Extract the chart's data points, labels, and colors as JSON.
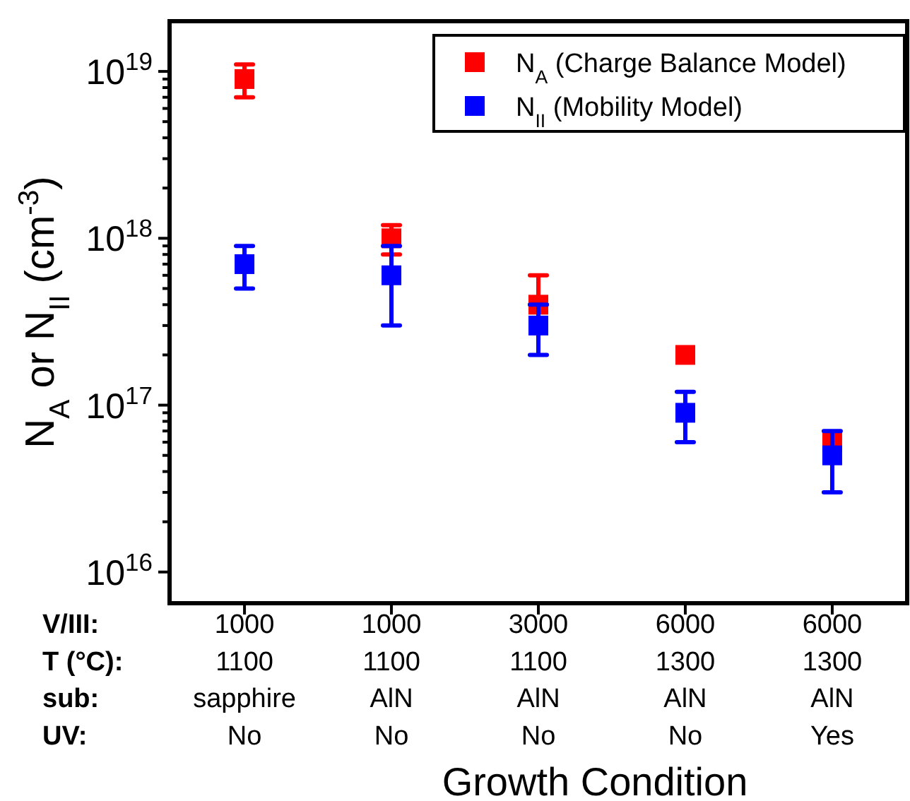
{
  "chart_data": {
    "type": "scatter",
    "xlabel": "Growth Condition",
    "ylabel": "N$_{A}$ or N$_{II}$ (cm$^{-3}$)",
    "categories": [
      "1000\n1100\nsapphire\nNo",
      "1000\n1100\nAlN\nNo",
      "3000\n1100\nAlN\nNo",
      "6000\n1300\nAlN\nNo",
      "6000\n1300\nAlN\nYes"
    ],
    "annotations": [
      "V/III:",
      "T (°C):",
      "sub:",
      "UV:"
    ],
    "log": true,
    "ylim": [
      6500000000000000.0,
      2e+19
    ],
    "yticks": [
      {
        "value": 1e+16,
        "label": "10$^{16}$"
      },
      {
        "value": 2e+16,
        "label": null
      },
      {
        "value": 3e+16,
        "label": null
      },
      {
        "value": 4e+16,
        "label": null
      },
      {
        "value": 5e+16,
        "label": null
      },
      {
        "value": 6e+16,
        "label": null
      },
      {
        "value": 7e+16,
        "label": null
      },
      {
        "value": 8e+16,
        "label": null
      },
      {
        "value": 9e+16,
        "label": null
      },
      {
        "value": 1e+17,
        "label": "10$^{17}$"
      },
      {
        "value": 2e+17,
        "label": null
      },
      {
        "value": 3e+17,
        "label": null
      },
      {
        "value": 4e+17,
        "label": null
      },
      {
        "value": 5e+17,
        "label": null
      },
      {
        "value": 6e+17,
        "label": null
      },
      {
        "value": 7e+17,
        "label": null
      },
      {
        "value": 8e+17,
        "label": null
      },
      {
        "value": 9e+17,
        "label": null
      },
      {
        "value": 1e+18,
        "label": "10$^{18}$"
      },
      {
        "value": 2e+18,
        "label": null
      },
      {
        "value": 3e+18,
        "label": null
      },
      {
        "value": 4e+18,
        "label": null
      },
      {
        "value": 5e+18,
        "label": null
      },
      {
        "value": 6e+18,
        "label": null
      },
      {
        "value": 7e+18,
        "label": null
      },
      {
        "value": 8e+18,
        "label": null
      },
      {
        "value": 9e+18,
        "label": null
      },
      {
        "value": 1e+19,
        "label": "10$^{19}$"
      }
    ],
    "marker": "square",
    "legend": "top right",
    "grid": false,
    "series": [
      {
        "name": "N$_{A}$ (Charge Balance Model)",
        "color": "#ff0000",
        "values": [
          9e+18,
          1e+18,
          4e+17,
          2e+17,
          6e+16
        ],
        "errors": [
          [
            7e+18,
            1.1e+19
          ],
          [
            8e+17,
            1.2e+18
          ],
          [
            4e+17,
            6e+17
          ],
          null,
          null
        ]
      },
      {
        "name": "N$_{II}$ (Mobility Model)",
        "color": "#0000ff",
        "values": [
          7e+17,
          6e+17,
          3e+17,
          9e+16,
          5e+16
        ],
        "errors": [
          [
            5e+17,
            9e+17
          ],
          [
            3e+17,
            9e+17
          ],
          [
            2e+17,
            4e+17
          ],
          [
            6e+16,
            1.2e+17
          ],
          [
            3e+16,
            7e+16
          ]
        ]
      }
    ]
  }
}
